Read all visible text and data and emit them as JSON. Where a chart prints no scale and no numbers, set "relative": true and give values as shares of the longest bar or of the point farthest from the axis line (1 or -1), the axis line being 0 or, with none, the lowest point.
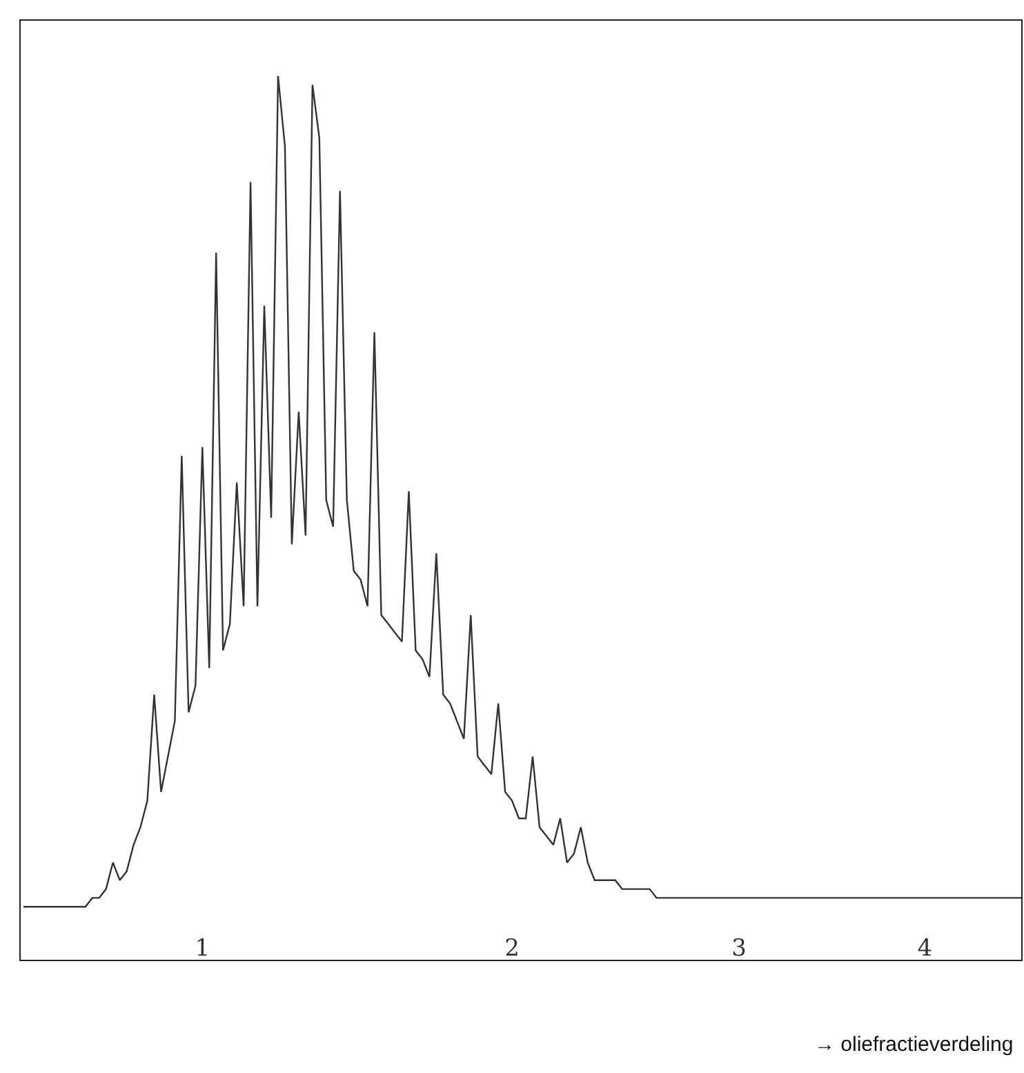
{
  "chart_data": {
    "type": "line",
    "relative": true,
    "xlabel": "→ oliefractieverdeling",
    "categories": [
      null,
      null,
      null,
      null,
      null,
      null,
      null,
      null,
      null,
      null,
      null,
      null,
      null,
      null,
      null,
      null,
      null,
      null,
      null,
      null,
      null,
      null,
      null,
      null,
      null,
      null,
      "1",
      null,
      null,
      null,
      null,
      null,
      null,
      null,
      null,
      null,
      null,
      null,
      null,
      null,
      null,
      null,
      null,
      null,
      null,
      null,
      null,
      null,
      null,
      null,
      null,
      null,
      null,
      null,
      null,
      null,
      null,
      null,
      null,
      null,
      null,
      null,
      null,
      null,
      null,
      null,
      null,
      null,
      null,
      null,
      null,
      "2",
      null,
      null,
      null,
      null,
      null,
      null,
      null,
      null,
      null,
      null,
      null,
      null,
      null,
      null,
      null,
      null,
      null,
      null,
      null,
      null,
      null,
      null,
      null,
      null,
      null,
      null,
      null,
      null,
      null,
      null,
      null,
      null,
      "3",
      null,
      null,
      null,
      null,
      null,
      null,
      null,
      null,
      null,
      null,
      null,
      null,
      null,
      null,
      null,
      null,
      null,
      null,
      null,
      null,
      null,
      null,
      null,
      null,
      null,
      null,
      "4",
      null,
      null,
      null,
      null,
      null,
      null,
      null,
      null,
      null,
      null,
      null,
      null,
      null,
      null
    ],
    "series": [
      {
        "color": "#333333",
        "values": [
          0.06,
          0.06,
          0.06,
          0.06,
          0.06,
          0.06,
          0.06,
          0.06,
          0.06,
          0.06,
          0.07,
          0.07,
          0.08,
          0.11,
          0.09,
          0.1,
          0.13,
          0.15,
          0.18,
          0.3,
          0.19,
          0.23,
          0.27,
          0.57,
          0.28,
          0.31,
          0.58,
          0.33,
          0.8,
          0.35,
          0.38,
          0.54,
          0.4,
          0.88,
          0.4,
          0.74,
          0.5,
          1.0,
          0.92,
          0.47,
          0.62,
          0.48,
          0.99,
          0.93,
          0.52,
          0.49,
          0.87,
          0.52,
          0.44,
          0.43,
          0.4,
          0.71,
          0.39,
          0.38,
          0.37,
          0.36,
          0.53,
          0.35,
          0.34,
          0.32,
          0.46,
          0.3,
          0.29,
          0.27,
          0.25,
          0.39,
          0.23,
          0.22,
          0.21,
          0.29,
          0.19,
          0.18,
          0.16,
          0.16,
          0.23,
          0.15,
          0.14,
          0.13,
          0.16,
          0.11,
          0.12,
          0.15,
          0.11,
          0.09,
          0.09,
          0.09,
          0.09,
          0.08,
          0.08,
          0.08,
          0.08,
          0.08,
          0.07,
          0.07,
          0.07,
          0.07,
          0.07,
          0.07,
          0.07,
          0.07,
          0.07,
          0.07,
          0.07,
          0.07,
          0.07,
          0.07,
          0.07,
          0.07,
          0.07,
          0.07,
          0.07,
          0.07,
          0.07,
          0.07,
          0.07,
          0.07,
          0.07,
          0.07,
          0.07,
          0.07,
          0.07,
          0.07,
          0.07,
          0.07,
          0.07,
          0.07,
          0.07,
          0.07,
          0.07,
          0.07,
          0.07,
          0.07,
          0.07,
          0.07,
          0.07,
          0.07,
          0.07,
          0.07,
          0.07,
          0.07,
          0.07,
          0.07,
          0.07,
          0.07,
          0.07,
          0.07
        ]
      }
    ]
  }
}
